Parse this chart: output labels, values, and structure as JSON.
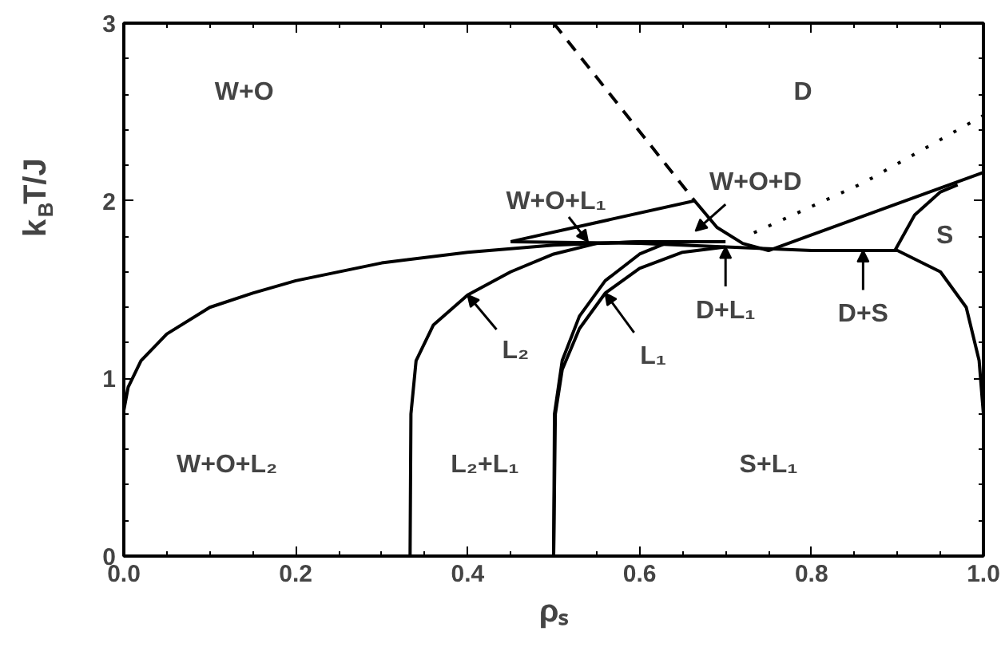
{
  "chart_data": {
    "type": "line",
    "xlabel": "ρₛ",
    "ylabel": "k$_{B}$T/J",
    "xlim": [
      0,
      1
    ],
    "ylim": [
      0,
      3
    ],
    "xticks": [
      {
        "value": 0,
        "label": "0.0"
      },
      {
        "value": 0.2,
        "label": "0.2"
      },
      {
        "value": 0.4,
        "label": "0.4"
      },
      {
        "value": 0.6,
        "label": "0.6"
      },
      {
        "value": 0.8,
        "label": "0.8"
      },
      {
        "value": 1,
        "label": "1.0"
      }
    ],
    "yticks": [
      0,
      1,
      2,
      3
    ],
    "grid": false,
    "marker": "none",
    "series": [
      {
        "color": "#000000",
        "x": [
          0,
          0.005,
          0.02,
          0.05,
          0.1,
          0.15,
          0.2,
          0.3,
          0.4,
          0.5,
          0.6,
          0.7
        ],
        "values": [
          0.82,
          0.95,
          1.1,
          1.25,
          1.4,
          1.48,
          1.55,
          1.65,
          1.71,
          1.75,
          1.77,
          1.77
        ]
      },
      {
        "color": "#000000",
        "x": [
          0.333,
          0.334,
          0.34,
          0.36,
          0.4,
          0.45,
          0.5,
          0.55,
          0.6
        ],
        "values": [
          0,
          0.8,
          1.1,
          1.3,
          1.47,
          1.6,
          1.7,
          1.76,
          1.77
        ]
      },
      {
        "color": "#000000",
        "x": [
          0.5,
          0.501,
          0.51,
          0.53,
          0.56,
          0.6,
          0.63,
          0.66
        ],
        "values": [
          0,
          0.8,
          1.1,
          1.35,
          1.55,
          1.7,
          1.76,
          1.77
        ]
      },
      {
        "color": "#000000",
        "x": [
          0.5,
          0.502,
          0.51,
          0.53,
          0.56,
          0.6,
          0.65,
          0.7
        ],
        "values": [
          0,
          0.8,
          1.05,
          1.28,
          1.48,
          1.62,
          1.71,
          1.74
        ]
      },
      {
        "color": "#000000",
        "x": [
          0.45,
          0.6,
          0.7,
          0.8,
          0.9,
          0.95,
          0.98,
          0.995,
          1.0,
          1.0
        ],
        "values": [
          1.77,
          1.76,
          1.74,
          1.72,
          1.72,
          1.6,
          1.4,
          1.1,
          0.8,
          0
        ]
      },
      {
        "color": "#000000",
        "x": [
          0.45,
          0.664,
          0.69,
          0.72,
          0.75,
          1.0
        ],
        "values": [
          1.77,
          2.0,
          1.85,
          1.76,
          1.72,
          2.16
        ]
      },
      {
        "color": "#000000",
        "x": [
          0.897,
          0.92,
          0.95,
          0.97
        ],
        "values": [
          1.72,
          1.92,
          2.05,
          2.09
        ]
      },
      {
        "color": "#000000",
        "line_style": "dashed",
        "x": [
          0.5,
          0.664
        ],
        "values": [
          3.0,
          2.0
        ]
      },
      {
        "color": "#000000",
        "line_style": "dotted",
        "x": [
          0.733,
          0.86,
          1.0
        ],
        "values": [
          1.82,
          2.1,
          2.48
        ]
      }
    ],
    "annotations": [
      "W+O",
      "D",
      {
        "text": "W+O+L₁",
        "x": 0.54,
        "y": 1.77
      },
      "W+O+D",
      {
        "text": "L₂",
        "x": 0.4,
        "y": 1.47
      },
      {
        "text": "L₁",
        "x": 0.56,
        "y": 1.48
      },
      {
        "text": "D+L₁",
        "x": 0.7,
        "y": 1.74
      },
      {
        "text": "D+S",
        "x": 0.86,
        "y": 1.72
      },
      "S",
      "W+O+L₂",
      "L₂+L₁",
      "S+L₁"
    ]
  }
}
